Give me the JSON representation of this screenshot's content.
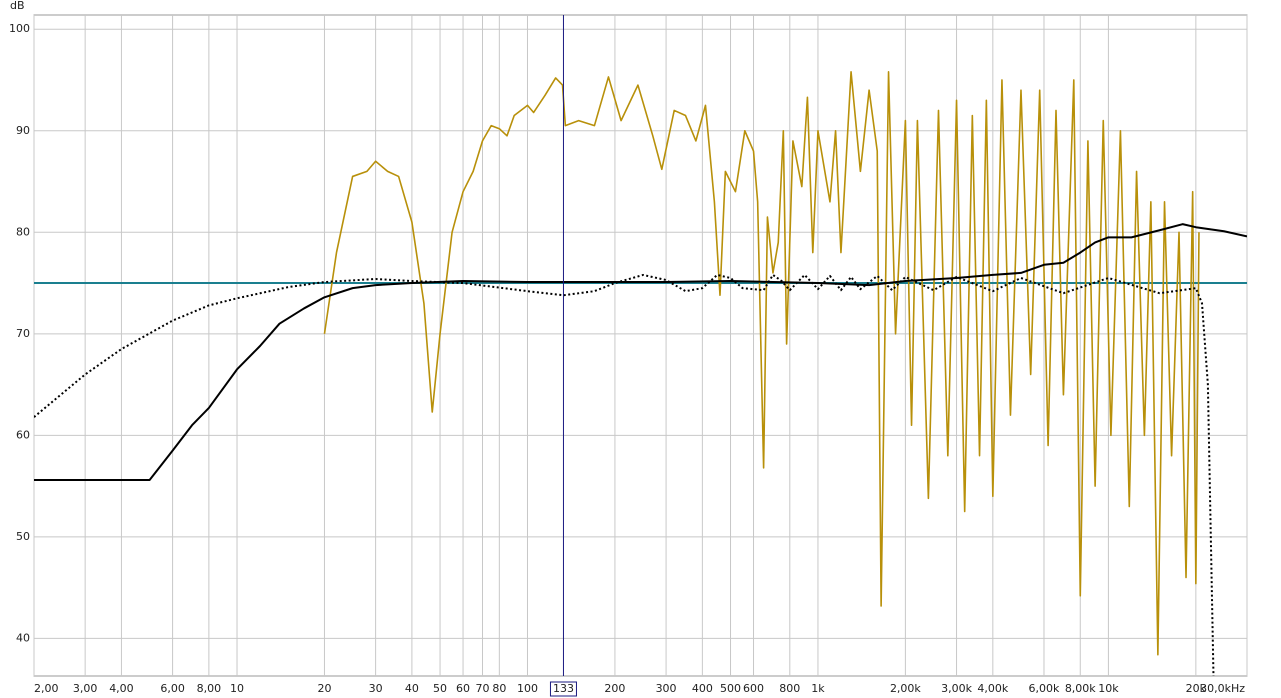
{
  "chart_data": {
    "type": "line",
    "y_unit": "dB",
    "xscale": "log",
    "grid": true,
    "xlim": [
      2,
      30000
    ],
    "ylim": [
      36.3,
      101.4
    ],
    "yticks": [
      40,
      50,
      60,
      70,
      80,
      90,
      100
    ],
    "xticks": [
      {
        "value": 2,
        "label": "2,00"
      },
      {
        "value": 3,
        "label": "3,00"
      },
      {
        "value": 4,
        "label": "4,00"
      },
      {
        "value": 6,
        "label": "6,00"
      },
      {
        "value": 8,
        "label": "8,00"
      },
      10,
      20,
      30,
      40,
      50,
      60,
      70,
      80,
      100,
      200,
      300,
      400,
      500,
      600,
      800,
      {
        "value": 1000,
        "label": "1k"
      },
      {
        "value": 2000,
        "label": "2,00k"
      },
      {
        "value": 3000,
        "label": "3,00k"
      },
      {
        "value": 4000,
        "label": "4,00k"
      },
      {
        "value": 6000,
        "label": "6,00k"
      },
      {
        "value": 8000,
        "label": "8,00k"
      },
      {
        "value": 10000,
        "label": "10k"
      },
      {
        "value": 20000,
        "label": "20k"
      },
      {
        "value": 30000,
        "label": "30,0kHz"
      }
    ],
    "cursor": {
      "value": 133,
      "label": "133",
      "color": "#1a1a80"
    },
    "series": [
      {
        "color": "#1a7f8f",
        "style": "solid",
        "x": [
          2,
          30000
        ],
        "values": [
          75,
          75
        ]
      },
      {
        "color": "#b8900a",
        "style": "solid",
        "x": [
          20,
          22,
          25,
          28,
          30,
          33,
          36,
          40,
          44,
          47,
          50,
          55,
          60,
          65,
          70,
          75,
          80,
          85,
          90,
          100,
          105,
          115,
          125,
          132,
          135,
          150,
          170,
          190,
          210,
          240,
          270,
          290,
          320,
          350,
          380,
          410,
          440,
          460,
          480,
          520,
          560,
          600,
          620,
          650,
          670,
          700,
          730,
          760,
          780,
          820,
          880,
          920,
          960,
          1000,
          1100,
          1150,
          1200,
          1300,
          1400,
          1500,
          1600,
          1650,
          1750,
          1850,
          2000,
          2100,
          2200,
          2400,
          2600,
          2800,
          3000,
          3200,
          3400,
          3600,
          3800,
          4000,
          4300,
          4600,
          5000,
          5400,
          5800,
          6200,
          6600,
          7000,
          7600,
          8000,
          8500,
          9000,
          9600,
          10200,
          11000,
          11800,
          12500,
          13300,
          14000,
          14800,
          15600,
          16500,
          17500,
          18500,
          19500,
          20000,
          20500
        ],
        "values": [
          70,
          78,
          85.5,
          86,
          87,
          86,
          85.5,
          81,
          73,
          62.3,
          70,
          80,
          84,
          86,
          89,
          90.5,
          90.2,
          89.5,
          91.5,
          92.5,
          91.8,
          93.5,
          95.2,
          94.5,
          90.5,
          91,
          90.5,
          95.3,
          91,
          94.5,
          89.5,
          86.2,
          92,
          91.5,
          89,
          92.5,
          83,
          73.8,
          86,
          84,
          90,
          88,
          83,
          56.8,
          81.5,
          76,
          79,
          90,
          69,
          89,
          84.5,
          93.3,
          78,
          90,
          83,
          90,
          78,
          95.8,
          86,
          94,
          88,
          43.2,
          95.8,
          70,
          91,
          61,
          91,
          53.8,
          92,
          58,
          93,
          52.5,
          91.5,
          58,
          93,
          54,
          95,
          62,
          94,
          66,
          94,
          59,
          92,
          64,
          95,
          44.2,
          89,
          55,
          91,
          60,
          90,
          53,
          86,
          60,
          83,
          38.4,
          83,
          58,
          80,
          46,
          84,
          45.4,
          80
        ]
      },
      {
        "color": "#000000",
        "style": "solid",
        "x": [
          2,
          5,
          6,
          7,
          8,
          10,
          12,
          14,
          17,
          20,
          25,
          30,
          40,
          60,
          100,
          300,
          500,
          1000,
          1500,
          2000,
          3000,
          4000,
          5000,
          6000,
          7000,
          8000,
          9000,
          10000,
          12000,
          15000,
          18000,
          20000,
          25000,
          30000
        ],
        "values": [
          55.6,
          55.6,
          58.5,
          61,
          62.7,
          66.5,
          68.8,
          71,
          72.5,
          73.6,
          74.5,
          74.8,
          75,
          75.2,
          75.1,
          75.1,
          75.2,
          75,
          74.8,
          75.2,
          75.5,
          75.8,
          76,
          76.8,
          77,
          78,
          79,
          79.5,
          79.5,
          80.2,
          80.8,
          80.5,
          80.1,
          79.6
        ]
      },
      {
        "color": "#000000",
        "style": "dotted",
        "x": [
          2,
          3,
          4,
          6,
          8,
          10,
          15,
          20,
          30,
          40,
          60,
          100,
          133,
          170,
          200,
          250,
          300,
          350,
          400,
          450,
          500,
          550,
          650,
          700,
          750,
          800,
          900,
          1000,
          1100,
          1200,
          1300,
          1400,
          1600,
          1800,
          2000,
          2500,
          3000,
          4000,
          5000,
          7000,
          10000,
          15000,
          20000,
          21000,
          22000,
          23000
        ],
        "values": [
          61.8,
          66,
          68.5,
          71.3,
          72.8,
          73.5,
          74.6,
          75.1,
          75.4,
          75.2,
          75,
          74.2,
          73.8,
          74.2,
          75,
          75.8,
          75.3,
          74.2,
          74.5,
          75.8,
          75.5,
          74.5,
          74.3,
          75.8,
          75.2,
          74.3,
          75.8,
          74.4,
          75.7,
          74.3,
          75.6,
          74.4,
          75.7,
          74.3,
          75.6,
          74.3,
          75.6,
          74.2,
          75.5,
          74,
          75.5,
          74,
          74.5,
          73,
          65,
          36.3
        ]
      }
    ]
  }
}
